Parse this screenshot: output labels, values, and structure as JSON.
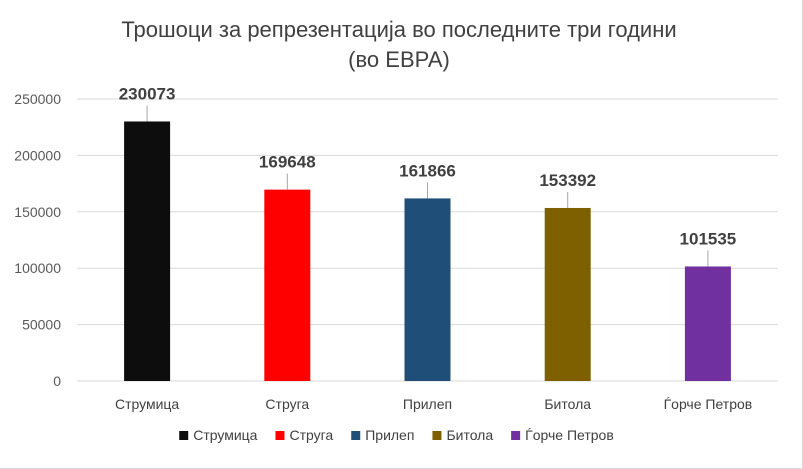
{
  "chart_data": {
    "type": "bar",
    "title": "Трошоци за репрезентација во последните три години",
    "subtitle": "(во ЕВРА)",
    "xlabel": "",
    "ylabel": "",
    "ylim": [
      0,
      250000
    ],
    "yticks": [
      0,
      50000,
      100000,
      150000,
      200000,
      250000
    ],
    "grid": true,
    "legend_position": "bottom",
    "data_labels": true,
    "categories": [
      "Струмица",
      "Струга",
      "Прилеп",
      "Битола",
      "Ѓорче Петров"
    ],
    "values": [
      230073,
      169648,
      161866,
      153392,
      101535
    ],
    "colors": [
      "#0d0d0d",
      "#ff0000",
      "#1f4e79",
      "#7f6000",
      "#7030a0"
    ],
    "legend": [
      "Струмица",
      "Струга",
      "Прилеп",
      "Битола",
      "Ѓорче Петров"
    ]
  }
}
